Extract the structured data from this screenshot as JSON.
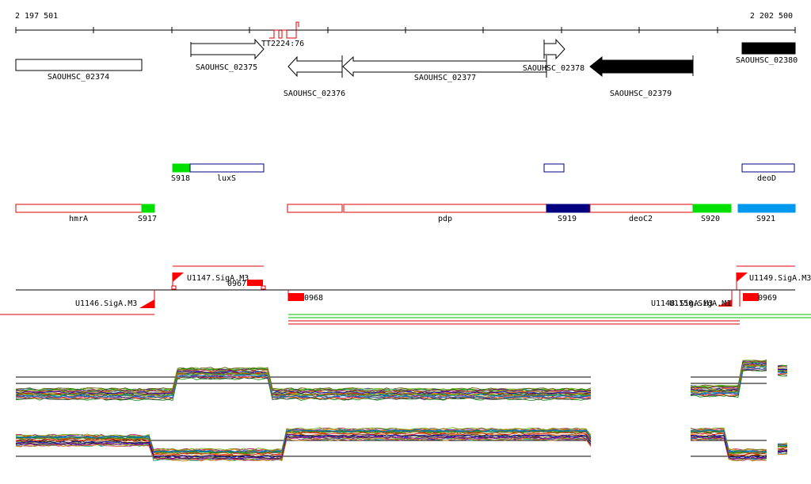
{
  "coordinates": {
    "start": "2 197 501",
    "end": "2 202 500"
  },
  "terminator": "TT2224:76",
  "genes": [
    {
      "label": "SAOUHSC_02374",
      "strand": "none",
      "filled": false
    },
    {
      "label": "SAOUHSC_02375",
      "strand": "forward",
      "filled": false
    },
    {
      "label": "SAOUHSC_02376",
      "strand": "reverse",
      "filled": false
    },
    {
      "label": "SAOUHSC_02377",
      "strand": "reverse",
      "filled": false
    },
    {
      "label": "SAOUHSC_02378",
      "strand": "forward",
      "filled": false
    },
    {
      "label": "SAOUHSC_02379",
      "strand": "reverse",
      "filled": true
    },
    {
      "label": "SAOUHSC_02380",
      "strand": "none",
      "filled": true
    }
  ],
  "operons_top": [
    {
      "label": "S918",
      "color": "#00e000"
    },
    {
      "label": "luxS",
      "color": "#ffffff"
    },
    {
      "label": "",
      "color": "#ffffff"
    },
    {
      "label": "deoD",
      "color": "#ffffff"
    }
  ],
  "operons_bottom": [
    {
      "label": "hmrA",
      "color": "#ffffff"
    },
    {
      "label": "S917",
      "color": "#00e000"
    },
    {
      "label": "",
      "color": "#ffffff"
    },
    {
      "label": "pdp",
      "color": "#ffffff"
    },
    {
      "label": "S919",
      "color": "#000080"
    },
    {
      "label": "deoC2",
      "color": "#ffffff"
    },
    {
      "label": "S920",
      "color": "#00e000"
    },
    {
      "label": "S921",
      "color": "#0099ee"
    }
  ],
  "promoters": [
    "U1147.SigA.M3",
    "U1146.SigA.M3",
    "U1149.SigA.M3",
    "U1148.SigA.M3",
    "U1150.SigA.M1"
  ],
  "srnas": [
    "0967",
    "0968",
    "0969"
  ],
  "colors": {
    "gene_outline": "#000000",
    "operon_red": "#dd0000",
    "operon_blue": "#000080",
    "promoter": "#ff0000",
    "read_green": "#00c000",
    "read_red": "#dd0000"
  }
}
